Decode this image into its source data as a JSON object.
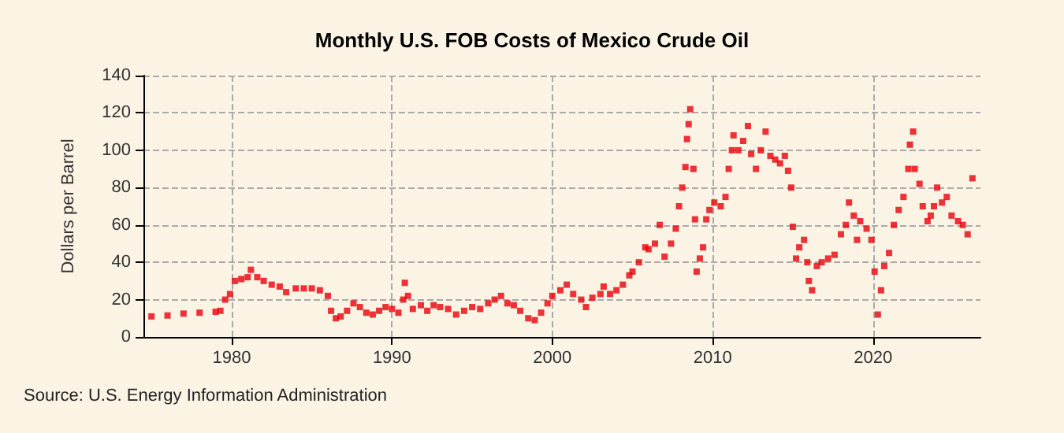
{
  "chart_data": {
    "type": "scatter",
    "title": "Monthly U.S. FOB Costs of Mexico Crude Oil",
    "ylabel": "Dollars per Barrel",
    "annotations": [
      "Source: U.S. Energy Information Administration"
    ],
    "marker": "square",
    "grid": true,
    "xlim": [
      1974.5,
      2026.7
    ],
    "xticks": [
      1980,
      1990,
      2000,
      2010,
      2020
    ],
    "ylim": [
      0,
      140
    ],
    "yticks": [
      0,
      20,
      40,
      60,
      80,
      100,
      120,
      140
    ],
    "x": [
      1975.0,
      1976.0,
      1977.0,
      1978.0,
      1979.0,
      1979.3,
      1979.6,
      1979.9,
      1980.2,
      1980.6,
      1981.0,
      1981.2,
      1981.6,
      1982.0,
      1982.5,
      1983.0,
      1983.4,
      1984.0,
      1984.5,
      1985.0,
      1985.5,
      1986.0,
      1986.2,
      1986.5,
      1986.8,
      1987.2,
      1987.6,
      1988.0,
      1988.4,
      1988.8,
      1989.2,
      1989.6,
      1990.0,
      1990.4,
      1990.7,
      1990.8,
      1991.0,
      1991.3,
      1991.8,
      1992.2,
      1992.6,
      1993.0,
      1993.5,
      1994.0,
      1994.5,
      1995.0,
      1995.5,
      1996.0,
      1996.4,
      1996.8,
      1997.2,
      1997.6,
      1998.0,
      1998.5,
      1998.9,
      1999.3,
      1999.7,
      2000.0,
      2000.5,
      2000.9,
      2001.3,
      2001.8,
      2002.1,
      2002.5,
      2003.0,
      2003.2,
      2003.6,
      2004.0,
      2004.4,
      2004.8,
      2005.0,
      2005.4,
      2005.8,
      2006.0,
      2006.4,
      2006.7,
      2007.0,
      2007.4,
      2007.7,
      2007.9,
      2008.1,
      2008.3,
      2008.4,
      2008.5,
      2008.6,
      2008.8,
      2008.9,
      2009.0,
      2009.2,
      2009.4,
      2009.6,
      2009.8,
      2010.1,
      2010.5,
      2010.8,
      2011.0,
      2011.2,
      2011.3,
      2011.6,
      2011.9,
      2012.2,
      2012.4,
      2012.7,
      2013.0,
      2013.3,
      2013.6,
      2013.9,
      2014.2,
      2014.5,
      2014.7,
      2014.9,
      2015.0,
      2015.2,
      2015.4,
      2015.7,
      2015.9,
      2016.0,
      2016.2,
      2016.5,
      2016.8,
      2017.2,
      2017.6,
      2018.0,
      2018.3,
      2018.5,
      2018.8,
      2019.0,
      2019.2,
      2019.6,
      2019.9,
      2020.1,
      2020.3,
      2020.5,
      2020.7,
      2021.0,
      2021.3,
      2021.6,
      2021.9,
      2022.2,
      2022.3,
      2022.5,
      2022.6,
      2022.9,
      2023.1,
      2023.4,
      2023.6,
      2023.8,
      2024.0,
      2024.3,
      2024.6,
      2024.9,
      2025.3,
      2025.6,
      2025.9,
      2026.2
    ],
    "series": [
      {
        "color": "#e8000b",
        "values": [
          11,
          11.5,
          12.5,
          13,
          13.5,
          14,
          20,
          23,
          30,
          31,
          32,
          36,
          32,
          30,
          28,
          27,
          24,
          26,
          26,
          26,
          25,
          22,
          14,
          10,
          11,
          14,
          18,
          16,
          13,
          12,
          14,
          16,
          15,
          13,
          20,
          29,
          22,
          15,
          17,
          14,
          17,
          16,
          15,
          12,
          14,
          16,
          15,
          18,
          20,
          22,
          18,
          17,
          14,
          10,
          9,
          13,
          18,
          22,
          25,
          28,
          23,
          20,
          16,
          21,
          23,
          27,
          23,
          25,
          28,
          33,
          35,
          40,
          48,
          47,
          50,
          60,
          43,
          50,
          58,
          70,
          80,
          91,
          106,
          114,
          122,
          90,
          63,
          35,
          42,
          48,
          63,
          68,
          72,
          70,
          75,
          90,
          100,
          108,
          100,
          105,
          113,
          98,
          90,
          100,
          110,
          97,
          95,
          93,
          97,
          89,
          80,
          59,
          42,
          48,
          52,
          40,
          30,
          25,
          38,
          40,
          42,
          44,
          55,
          60,
          72,
          65,
          52,
          62,
          58,
          52,
          35,
          12,
          25,
          38,
          45,
          60,
          68,
          75,
          90,
          103,
          110,
          90,
          82,
          70,
          62,
          65,
          70,
          80,
          72,
          75,
          65,
          62,
          60,
          55,
          85
        ]
      }
    ]
  }
}
